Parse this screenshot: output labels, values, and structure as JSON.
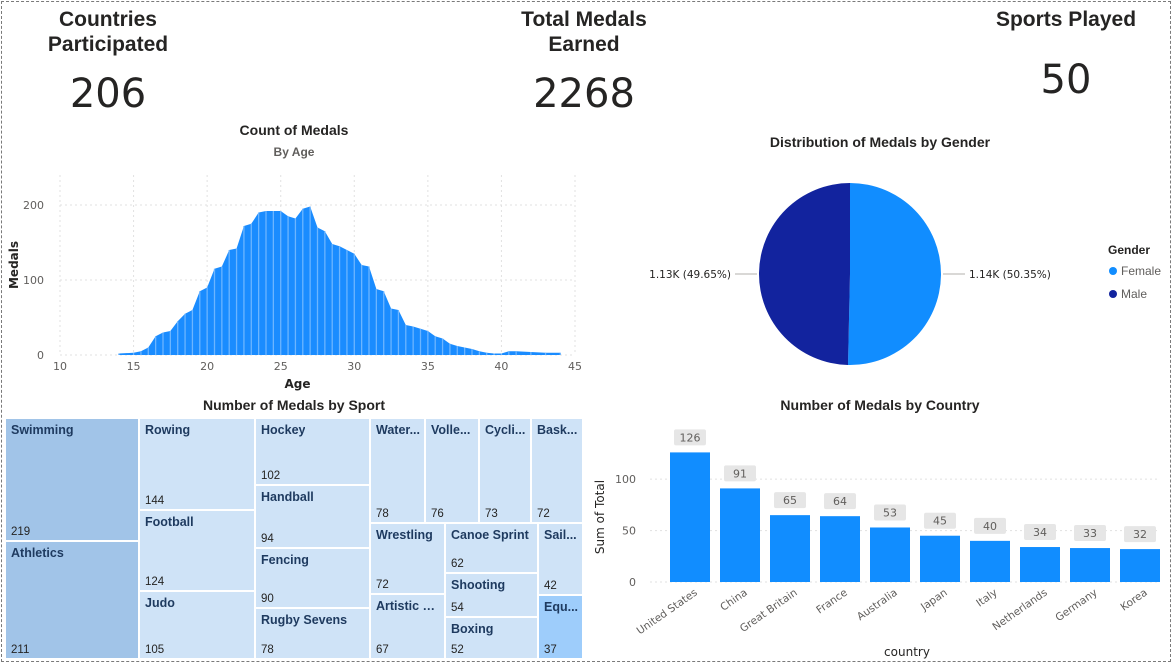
{
  "kpis": {
    "countries": {
      "title_line1": "Countries",
      "title_line2": "Participated",
      "value": "206"
    },
    "medals": {
      "title_line1": "Total Medals",
      "title_line2": "Earned",
      "value": "2268"
    },
    "sports": {
      "title_line1": "Sports Played",
      "value": "50"
    }
  },
  "colors": {
    "primary_blue": "#118DFF",
    "dark_navy": "#12239E",
    "treemap_dark": "#A1C4E8",
    "treemap_light": "#CFE3F7",
    "treemap_highlight": "#9ECDFB"
  },
  "chart_data": [
    {
      "type": "area",
      "title": "Count of Medals",
      "subtitle": "By Age",
      "xlabel": "Age",
      "ylabel": "Medals",
      "x_ticks": [
        "10",
        "15",
        "20",
        "25",
        "30",
        "35",
        "40",
        "45"
      ],
      "y_ticks": [
        "0",
        "100",
        "200"
      ],
      "xlim": [
        10,
        45
      ],
      "ylim": [
        0,
        240
      ],
      "x": [
        14,
        15,
        15.5,
        16,
        16.5,
        17,
        17.5,
        18,
        18.5,
        19,
        19.5,
        20,
        20.5,
        21,
        21.5,
        22,
        22.5,
        23,
        23.5,
        24,
        24.5,
        25,
        25.5,
        26,
        26.5,
        27,
        27.5,
        28,
        28.5,
        29,
        29.5,
        30,
        30.5,
        31,
        31.5,
        32,
        32.5,
        33,
        33.5,
        34,
        34.5,
        35,
        35.5,
        36,
        36.5,
        37,
        37.5,
        38,
        38.5,
        39,
        39.5,
        40,
        40.5,
        41,
        42,
        43,
        44
      ],
      "values": [
        2,
        3,
        5,
        10,
        25,
        30,
        32,
        45,
        55,
        60,
        85,
        90,
        115,
        118,
        140,
        142,
        172,
        175,
        190,
        192,
        192,
        192,
        185,
        182,
        195,
        198,
        170,
        165,
        148,
        145,
        140,
        135,
        120,
        118,
        88,
        85,
        62,
        60,
        40,
        38,
        35,
        32,
        25,
        22,
        15,
        12,
        10,
        8,
        5,
        3,
        2,
        2,
        5,
        5,
        4,
        3,
        3
      ]
    },
    {
      "type": "pie",
      "title": "Distribution of Medals by Gender",
      "legend_title": "Gender",
      "legend_position": "right",
      "slices": [
        {
          "name": "Female",
          "value": 1.14,
          "percent": 50.35,
          "label": "1.14K (50.35%)",
          "color": "#118DFF"
        },
        {
          "name": "Male",
          "value": 1.13,
          "percent": 49.65,
          "label": "1.13K (49.65%)",
          "color": "#12239E"
        }
      ]
    },
    {
      "type": "treemap",
      "title": "Number of Medals by Sport",
      "items": [
        {
          "name": "Swimming",
          "value": 219
        },
        {
          "name": "Athletics",
          "value": 211
        },
        {
          "name": "Rowing",
          "value": 144
        },
        {
          "name": "Football",
          "value": 124
        },
        {
          "name": "Judo",
          "value": 105
        },
        {
          "name": "Hockey",
          "value": 102
        },
        {
          "name": "Handball",
          "value": 94
        },
        {
          "name": "Fencing",
          "value": 90
        },
        {
          "name": "Rugby Sevens",
          "value": 78
        },
        {
          "name": "Water...",
          "value": 78
        },
        {
          "name": "Volle...",
          "value": 76
        },
        {
          "name": "Cycli...",
          "value": 73
        },
        {
          "name": "Bask...",
          "value": 72
        },
        {
          "name": "Wrestling",
          "value": 72
        },
        {
          "name": "Artistic G...",
          "value": 67
        },
        {
          "name": "Canoe Sprint",
          "value": 62
        },
        {
          "name": "Shooting",
          "value": 54
        },
        {
          "name": "Boxing",
          "value": 52
        },
        {
          "name": "Sail...",
          "value": 42
        },
        {
          "name": "Equ...",
          "value": 37
        }
      ]
    },
    {
      "type": "bar",
      "title": "Number of Medals by Country",
      "xlabel": "country",
      "ylabel": "Sum of Total",
      "y_ticks": [
        "0",
        "50",
        "100"
      ],
      "ylim": [
        0,
        140
      ],
      "categories": [
        "United States",
        "China",
        "Great Britain",
        "France",
        "Australia",
        "Japan",
        "Italy",
        "Netherlands",
        "Germany",
        "Korea"
      ],
      "values": [
        126,
        91,
        65,
        64,
        53,
        45,
        40,
        34,
        33,
        32
      ]
    }
  ]
}
